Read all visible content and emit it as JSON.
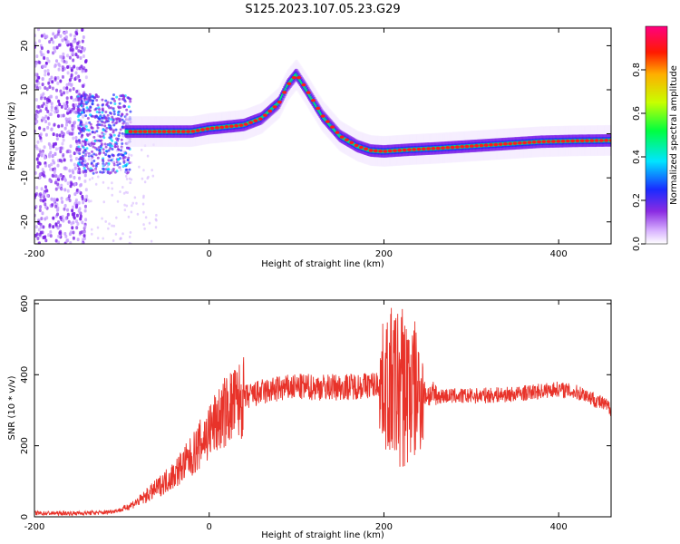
{
  "figure_title": "S125.2023.107.05.23.G29",
  "chart_data": [
    {
      "type": "heatmap",
      "title": "",
      "xlabel": "Height of straight line (km)",
      "ylabel": "Frequency (Hz)",
      "xlim": [
        -200,
        460
      ],
      "ylim": [
        -25,
        24
      ],
      "xticks": [
        -200,
        0,
        200,
        400
      ],
      "yticks": [
        20,
        10,
        0,
        -10,
        -20
      ],
      "colorbar": {
        "label": "Normalized spectral amplitude",
        "range": [
          0,
          1
        ],
        "ticks": [
          "0.0",
          "0.2",
          "0.4",
          "0.6",
          "0.8"
        ]
      },
      "ridge": {
        "x": [
          -90,
          -60,
          -20,
          0,
          40,
          60,
          80,
          90,
          100,
          110,
          130,
          150,
          170,
          185,
          200,
          230,
          260,
          300,
          340,
          380,
          420,
          460
        ],
        "y": [
          0.5,
          0.5,
          0.5,
          1.2,
          2.0,
          3.5,
          7.0,
          11.0,
          13.5,
          10.5,
          4.0,
          -0.5,
          -2.8,
          -3.8,
          -4.0,
          -3.6,
          -3.3,
          -2.8,
          -2.3,
          -1.8,
          -1.6,
          -1.5
        ]
      }
    },
    {
      "type": "line",
      "title": "",
      "xlabel": "Height of straight line (km)",
      "ylabel": "SNR (10 * v/v)",
      "xlim": [
        -200,
        460
      ],
      "ylim": [
        0,
        610
      ],
      "xticks": [
        -200,
        0,
        200,
        400
      ],
      "yticks": [
        0,
        200,
        400,
        600
      ],
      "color": "#e8332a",
      "envelope": {
        "x": [
          -200,
          -150,
          -120,
          -100,
          -80,
          -60,
          -40,
          -20,
          0,
          20,
          40,
          60,
          80,
          100,
          150,
          180,
          200,
          220,
          240,
          260,
          300,
          350,
          400,
          430,
          460
        ],
        "y": [
          10,
          10,
          12,
          20,
          45,
          80,
          120,
          170,
          240,
          300,
          335,
          350,
          360,
          365,
          365,
          370,
          375,
          365,
          350,
          340,
          340,
          345,
          360,
          345,
          305
        ]
      },
      "spike_region_x": [
        195,
        245
      ]
    }
  ]
}
